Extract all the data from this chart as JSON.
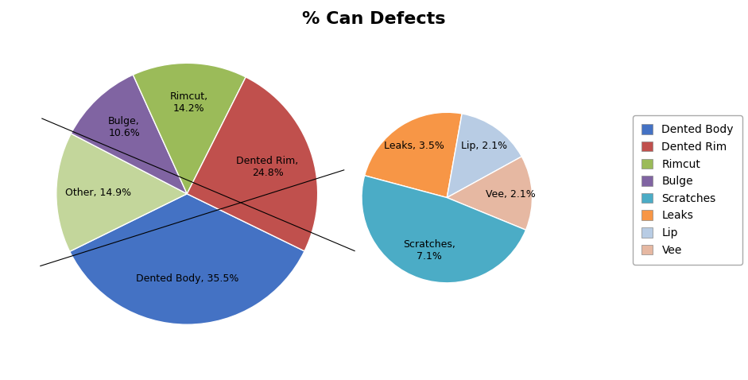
{
  "title": "% Can Defects",
  "main_labels": [
    "Dented Body",
    "Other",
    "Bulge",
    "Rimcut",
    "Dented Rim"
  ],
  "main_values": [
    35.5,
    14.9,
    10.6,
    14.2,
    24.8
  ],
  "main_colors": [
    "#4472C4",
    "#C3D69B",
    "#8064A2",
    "#9BBB59",
    "#C0504D"
  ],
  "sub_labels": [
    "Leaks",
    "Lip",
    "Vee",
    "Scratches"
  ],
  "sub_values": [
    3.5,
    2.1,
    2.1,
    7.1
  ],
  "sub_colors": [
    "#F79646",
    "#B8CCE4",
    "#E6B8A2",
    "#4BACC6"
  ],
  "legend_labels": [
    "Dented Body",
    "Dented Rim",
    "Rimcut",
    "Bulge",
    "Scratches",
    "Leaks",
    "Lip",
    "Vee"
  ],
  "legend_colors": [
    "#4472C4",
    "#C0504D",
    "#9BBB59",
    "#8064A2",
    "#4BACC6",
    "#F79646",
    "#B8CCE4",
    "#E6B8A2"
  ],
  "background_color": "#FFFFFF",
  "title_fontsize": 16,
  "label_fontsize": 9,
  "legend_fontsize": 10
}
